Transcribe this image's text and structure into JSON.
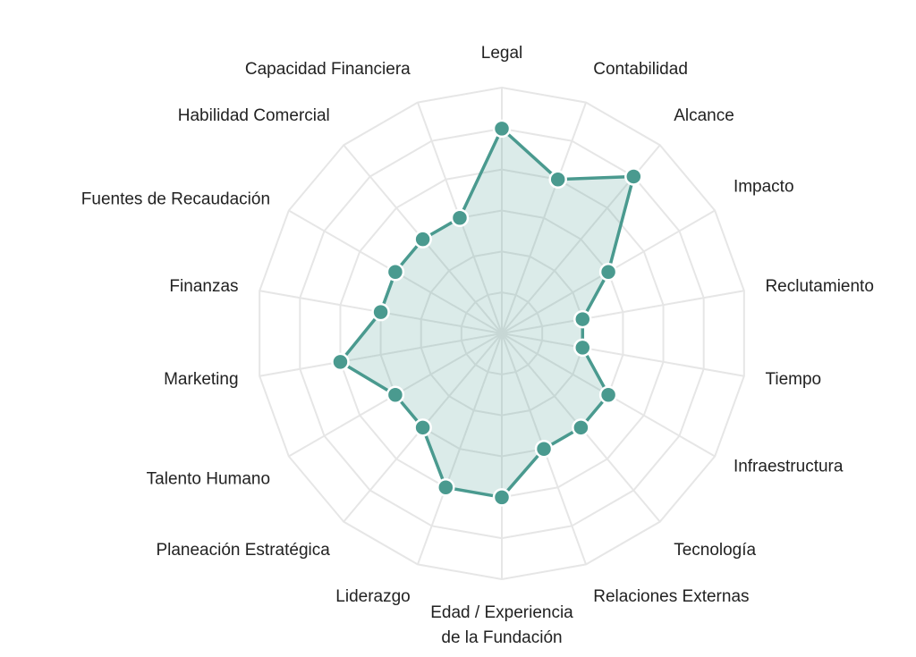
{
  "chart_data": {
    "type": "radar",
    "categories": [
      "Legal",
      "Contabilidad",
      "Alcance",
      "Impacto",
      "Reclutamiento",
      "Tiempo",
      "Infraestructura",
      "Tecnología",
      "Relaciones Externas",
      "Edad / Experiencia\nde la Fundación",
      "Liderazgo",
      "Planeación Estratégica",
      "Talento Humano",
      "Marketing",
      "Finanzas",
      "Fuentes de Recaudación",
      "Habilidad Comercial",
      "Capacidad Financiera"
    ],
    "values": [
      5,
      4,
      5,
      3,
      2,
      2,
      3,
      3,
      3,
      4,
      4,
      3,
      3,
      4,
      3,
      3,
      3,
      3
    ],
    "color": "#4a9a8f",
    "rlim": [
      0,
      6
    ],
    "rticks": [
      1,
      2,
      3,
      4,
      5,
      6
    ],
    "grid": true
  }
}
